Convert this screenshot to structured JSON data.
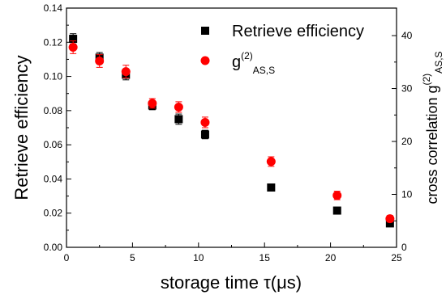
{
  "chart_data": {
    "type": "scatter",
    "xlabel": {
      "main": "storage time ",
      "symbol": "τ",
      "unit": "(μs)"
    },
    "ylabel_left": "Retrieve efficiency",
    "ylabel_right": {
      "main": "cross correlation g",
      "sup": "(2)",
      "sub": "AS,S"
    },
    "xlim": [
      0,
      25
    ],
    "ylim_left": [
      0,
      0.14
    ],
    "ylim_right": [
      0,
      45.2
    ],
    "x_ticks": [
      "0",
      "5",
      "10",
      "15",
      "20",
      "25"
    ],
    "y_left_ticks": [
      "0.00",
      "0.02",
      "0.04",
      "0.06",
      "0.08",
      "0.10",
      "0.12",
      "0.14"
    ],
    "y_right_ticks": [
      "0",
      "10",
      "20",
      "30",
      "40"
    ],
    "series": [
      {
        "name": "Retrieve efficiency",
        "axis": "left",
        "marker": "square",
        "color": "#000000",
        "x": [
          0.5,
          2.5,
          4.5,
          6.5,
          8.5,
          10.5,
          15.5,
          20.5,
          24.5
        ],
        "values": [
          0.122,
          0.111,
          0.101,
          0.083,
          0.075,
          0.066,
          0.035,
          0.0215,
          0.014
        ],
        "errors": [
          0.003,
          0.003,
          0.003,
          0.0025,
          0.003,
          0.0025,
          0.0015,
          0.0015,
          0.0015
        ]
      },
      {
        "name": "g",
        "legend_sup": "(2)",
        "legend_sub": "AS,S",
        "axis": "right",
        "marker": "circle",
        "color": "#ff0000",
        "x": [
          0.5,
          2.5,
          4.5,
          6.5,
          8.5,
          10.5,
          15.5,
          20.5,
          24.5
        ],
        "values": [
          37.8,
          35.2,
          33.2,
          27.2,
          26.5,
          23.6,
          16.2,
          9.8,
          5.4
        ],
        "errors": [
          1.2,
          1.2,
          1.2,
          0.9,
          1.0,
          1.0,
          0.9,
          0.8,
          0.6
        ]
      }
    ],
    "legend_position": "top-right",
    "grid": false
  }
}
